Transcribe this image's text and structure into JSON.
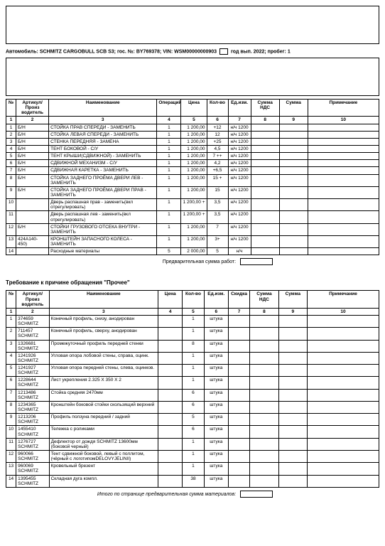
{
  "header_box": true,
  "info": {
    "auto_label": "Автомобиль:",
    "auto_value": "SCHMITZ CARGOBULL SCB S3; гос. №: BY769378; VIN: WSM00000000903",
    "year_label": "год вып. 2022; пробег: 1"
  },
  "table1": {
    "headers": [
      "№",
      "Артикул/Произ водитель",
      "Наименование",
      "Операций",
      "Цена",
      "Кол-во",
      "Ед.изм.",
      "Сумма НДС",
      "Сумма",
      "Примечание"
    ],
    "nums": [
      "1",
      "2",
      "3",
      "4",
      "5",
      "6",
      "7",
      "8",
      "9",
      "10"
    ],
    "cols_w": [
      14,
      46,
      152,
      34,
      36,
      30,
      32,
      40,
      40,
      100
    ],
    "rows": [
      {
        "n": "1",
        "art": "Б/Н",
        "name": "СТОЙКА ПРАВ СПЕРЕДИ - ЗАМЕНИТЬ",
        "op": "1",
        "price": "1 200,00",
        "qty": "+12",
        "unit": "н/ч 1200"
      },
      {
        "n": "2",
        "art": "Б/Н",
        "name": "СТОЙКА ЛЕВАЯ СПЕРЕДИ - ЗАМЕНИТЬ",
        "op": "1",
        "price": "1 200,00",
        "qty": "12",
        "unit": "н/ч 1200"
      },
      {
        "n": "3",
        "art": "Б/Н",
        "name": "СТЕНКА ПЕРЕДНЯЯ - ЗАМЕНА",
        "op": "1",
        "price": "1 200,00",
        "qty": "+25",
        "unit": "н/ч 1200"
      },
      {
        "n": "4",
        "art": "Б/Н",
        "name": "ТЕНТ БОКОВОЙ - С/У",
        "op": "1",
        "price": "1 200,00",
        "qty": "4,5",
        "unit": "н/ч 1200"
      },
      {
        "n": "5",
        "art": "Б/Н",
        "name": "ТЕНТ КРЫШИ(СДВИЖНОЙ) - ЗАМЕНИТЬ",
        "op": "1",
        "price": "1 200,00",
        "qty": "7 ++",
        "unit": "н/ч 1200"
      },
      {
        "n": "6",
        "art": "Б/Н",
        "name": "СДВИЖНОЙ МЕХАНИЗМ - С/У",
        "op": "1",
        "price": "1 200,00",
        "qty": "4,2",
        "unit": "н/ч 1200"
      },
      {
        "n": "7",
        "art": "Б/Н",
        "name": "СДВИЖНАЯ КАРЕТКА - ЗАМЕНИТЬ",
        "op": "1",
        "price": "1 200,00",
        "qty": "+6,5",
        "unit": "н/ч 1200"
      },
      {
        "n": "8",
        "art": "Б/Н",
        "name": "СТОЙКА ЗАДНЕГО ПРОЁМА ДВЕРИ ЛЕВ - ЗАМЕНИТЬ",
        "op": "1",
        "price": "1 200,00",
        "qty": "15 +",
        "unit": "н/ч 1200"
      },
      {
        "n": "9",
        "art": "Б/Н",
        "name": "СТОЙКА ЗАДНЕГО ПРОЁМА ДВЕРИ ПРАВ - ЗАМЕНИТЬ",
        "op": "1",
        "price": "1 200,00",
        "qty": "15",
        "unit": "н/ч 1200"
      },
      {
        "n": "10",
        "art": "",
        "name": "Дверь распашная прав - заменить(вкл отрегулировать)",
        "op": "1",
        "price": "1 200,00 +",
        "qty": "3,5",
        "unit": "н/ч 1200"
      },
      {
        "n": "11",
        "art": "",
        "name": "Дверь распашная лев - заменить(вкл отрегулировать)",
        "op": "1",
        "price": "1 200,00 +",
        "qty": "3,5",
        "unit": "н/ч 1200"
      },
      {
        "n": "12",
        "art": "Б/Н",
        "name": "СТОЙКИ ГРУЗОВОГО ОТСЕКА ВНУТРИ - ЗАМЕНИТЬ",
        "op": "1",
        "price": "1 200,00",
        "qty": "7",
        "unit": "н/ч 1200"
      },
      {
        "n": "13",
        "art": "424A140-450)",
        "name": "КРОНШТЕЙН ЗАПАСНОГО КОЛЕСА - ЗАМЕНИТЬ",
        "op": "1",
        "price": "1 200,00",
        "qty": "3+",
        "unit": "н/ч 1200"
      },
      {
        "n": "14",
        "art": "",
        "name": "Расходные материалы",
        "op": "5",
        "price": "2 000,00",
        "qty": "5",
        "unit": "н/ч"
      }
    ],
    "footer_label": "Предварительная сумма работ:"
  },
  "section2_title": "Требование к причине обращения \"Прочее\"",
  "table2": {
    "headers": [
      "№",
      "Артикул/Произ водитель",
      "Наименование",
      "Цена",
      "Кол-во",
      "Ед.изм.",
      "Скидка",
      "Сумма НДС",
      "Сумма",
      "Примечание"
    ],
    "nums": [
      "1",
      "2",
      "3",
      "4",
      "5",
      "6",
      "7",
      "8",
      "9",
      "10"
    ],
    "cols_w": [
      14,
      46,
      152,
      34,
      30,
      34,
      30,
      40,
      40,
      100
    ],
    "rows": [
      {
        "n": "1",
        "art": "374659 SCHMITZ",
        "name": "Конечный профиль, снизу, анодирован",
        "qty": "1",
        "unit": "штука"
      },
      {
        "n": "2",
        "art": "711457 SCHMITZ",
        "name": "Конечный профиль, сверху, анодирован",
        "qty": "1",
        "unit": "штука"
      },
      {
        "n": "3",
        "art": "1326681 SCHMITZ",
        "name": "Промежуточный профиль передней стенки",
        "qty": "8",
        "unit": "штука"
      },
      {
        "n": "4",
        "art": "1241926 SCHMITZ",
        "name": "Угловая опора лобовой стены, справа, оцинк.",
        "qty": "1",
        "unit": "штука"
      },
      {
        "n": "5",
        "art": "1241927 SCHMITZ",
        "name": "Угловая опора передней стены, слева, оцинков.",
        "qty": "1",
        "unit": "штука"
      },
      {
        "n": "6",
        "art": "1228644 SCHMITZ",
        "name": "Лист укрепления  2.325 X 350 X 2",
        "qty": "1",
        "unit": "штука"
      },
      {
        "n": "7",
        "art": "1213486 SCHMITZ",
        "name": "Стойка средняя 2470мм",
        "qty": "6",
        "unit": "штука"
      },
      {
        "n": "8",
        "art": "1234365 SCHMITZ",
        "name": "Кронштейн боковой стойки скользящий верхний",
        "qty": "6",
        "unit": "штука"
      },
      {
        "n": "9",
        "art": "1213206 SCHMITZ",
        "name": "Профиль ползуна передний / задний",
        "qty": "5",
        "unit": "штука"
      },
      {
        "n": "10",
        "art": "1455410 SCHMITZ",
        "name": "Тележка с роликами",
        "qty": "6",
        "unit": "штука"
      },
      {
        "n": "11",
        "art": "1276727 SCHMITZ",
        "name": "Дефлектор от дождя SCHMITZ 13600мм (боковой черный)",
        "qty": "1",
        "unit": "штука"
      },
      {
        "n": "12",
        "art": "960066 SCHMITZ",
        "name": "Тент сдвижной боковой, левый с поллитом,(чёрный с логотипомDELOVYJELINII)",
        "qty": "1",
        "unit": "штука"
      },
      {
        "n": "13",
        "art": "960069 SCHMITZ",
        "name": "Кровельный брезент",
        "qty": "1",
        "unit": "штука"
      },
      {
        "n": "14",
        "art": "1395455 SCHMITZ",
        "name": "Складная дуга компл.",
        "qty": "38",
        "unit": "штука"
      }
    ],
    "footer_label": "Итого по странице предварительная сумма материалов:"
  }
}
